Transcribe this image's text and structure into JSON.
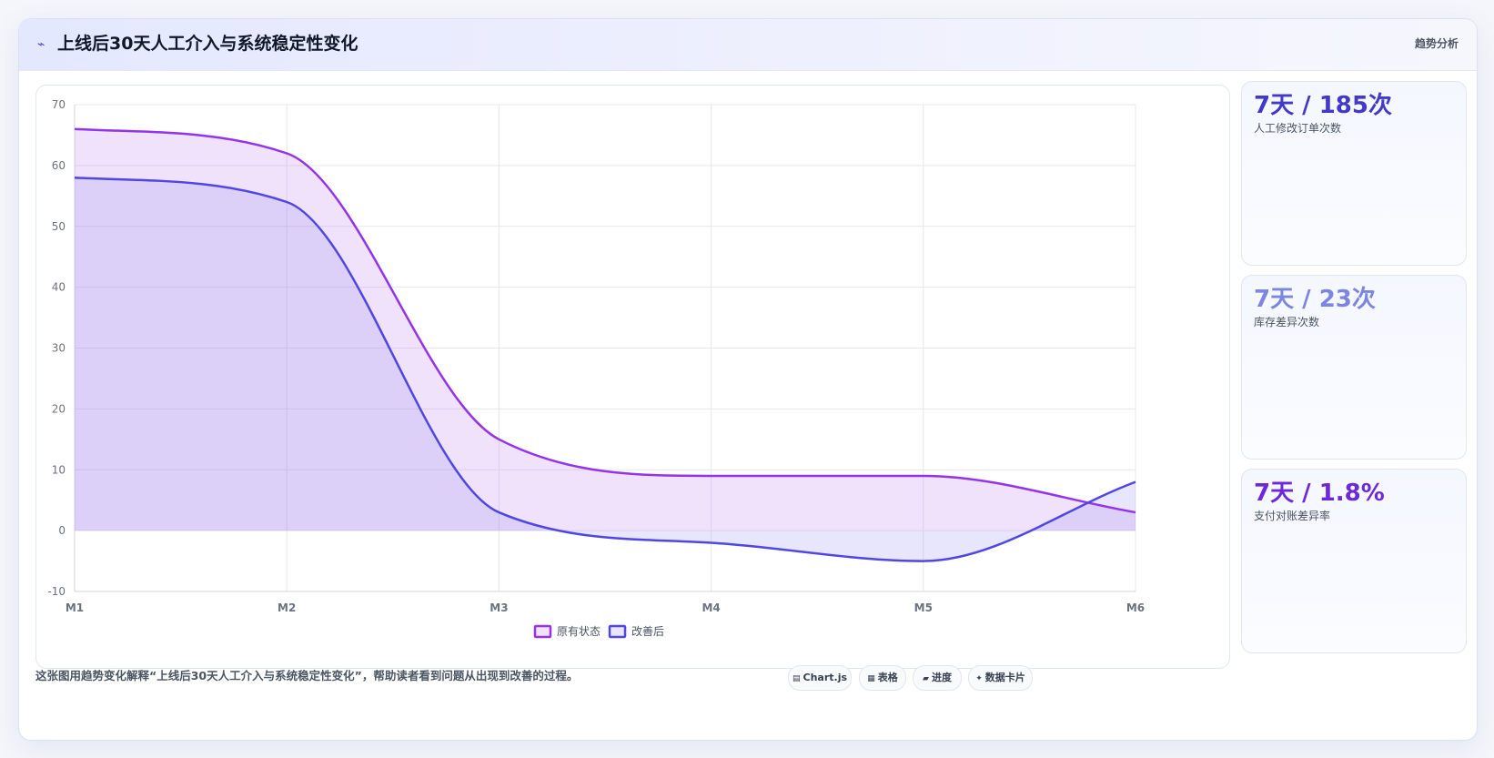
{
  "header": {
    "icon": "trend-wave-icon",
    "title": "上线后30天人工介入与系统稳定性变化",
    "tag": "趋势分析"
  },
  "chart_data": {
    "type": "area",
    "categories": [
      "M1",
      "M2",
      "M3",
      "M4",
      "M5",
      "M6"
    ],
    "ylim": [
      -10,
      70
    ],
    "yticks": [
      70,
      60,
      50,
      40,
      30,
      20,
      10,
      0,
      -10
    ],
    "grid": true,
    "legend_position": "bottom",
    "title": "",
    "xlabel": "",
    "ylabel": "",
    "series": [
      {
        "name": "原有状态",
        "values": [
          66,
          62,
          15,
          9,
          9,
          3
        ],
        "color": "#9333ea",
        "fill": "rgba(196,140,235,0.25)"
      },
      {
        "name": "改善后",
        "values": [
          58,
          54,
          3,
          -2,
          -5,
          8
        ],
        "color": "#4f46e5",
        "fill": "rgba(150,140,240,0.22)"
      }
    ]
  },
  "stats": [
    {
      "value": "7天 / 185次",
      "label": "人工修改订单次数",
      "color": "#4338ca"
    },
    {
      "value": "7天 / 23次",
      "label": "库存差异次数",
      "color": "#7c86e0"
    },
    {
      "value": "7天 / 1.8%",
      "label": "支付对账差异率",
      "color": "#6d28d9"
    }
  ],
  "footer": {
    "caption": "这张图用趋势变化解释“上线后30天人工介入与系统稳定性变化”，帮助读者看到问题从出现到改善的过程。",
    "pills": [
      {
        "icon": "chart-icon",
        "glyph": "▤",
        "label": "Chart.js"
      },
      {
        "icon": "table-icon",
        "glyph": "▦",
        "label": "表格"
      },
      {
        "icon": "progress-icon",
        "glyph": "▰",
        "label": "进度"
      },
      {
        "icon": "data-card-icon",
        "glyph": "✦",
        "label": "数据卡片"
      }
    ]
  }
}
